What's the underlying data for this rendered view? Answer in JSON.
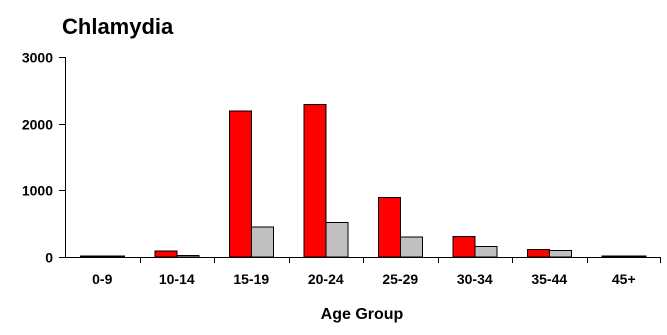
{
  "chart_data": {
    "type": "bar",
    "title": "Chlamydia",
    "xlabel": "Age Group",
    "ylabel": "",
    "ylim": [
      0,
      3000
    ],
    "yticks": [
      0,
      1000,
      2000,
      3000
    ],
    "grid": false,
    "categories": [
      "0-9",
      "10-14",
      "15-19",
      "20-24",
      "25-29",
      "30-34",
      "35-44",
      "45+"
    ],
    "series": [
      {
        "values": [
          10,
          90,
          2190,
          2290,
          890,
          310,
          110,
          10
        ],
        "color": "#ff0000"
      },
      {
        "values": [
          5,
          20,
          450,
          520,
          300,
          160,
          95,
          10
        ],
        "color": "#c0c0c0"
      }
    ]
  }
}
